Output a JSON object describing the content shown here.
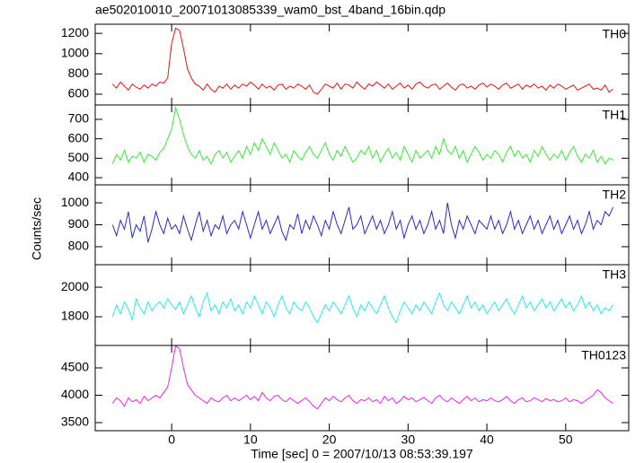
{
  "chart_data": {
    "type": "line",
    "title": "ae502010010_20071013085339_wam0_bst_4band_16bin.qdp",
    "xlabel": "Time [sec] 0 = 2007/10/13 08:53:39.197",
    "ylabel": "Counts/sec",
    "xlim": [
      -9.7,
      58
    ],
    "xticks": [
      0,
      10,
      20,
      30,
      40,
      50
    ],
    "x": [
      -7.5,
      -7,
      -6.5,
      -6,
      -5.5,
      -5,
      -4.5,
      -4,
      -3.5,
      -3,
      -2.5,
      -2,
      -1.5,
      -1,
      -0.5,
      0,
      0.5,
      1,
      1.5,
      2,
      2.5,
      3,
      3.5,
      4,
      4.5,
      5,
      5.5,
      6,
      6.5,
      7,
      7.5,
      8,
      8.5,
      9,
      9.5,
      10,
      10.5,
      11,
      11.5,
      12,
      12.5,
      13,
      13.5,
      14,
      14.5,
      15,
      15.5,
      16,
      16.5,
      17,
      17.5,
      18,
      18.5,
      19,
      19.5,
      20,
      20.5,
      21,
      21.5,
      22,
      22.5,
      23,
      23.5,
      24,
      24.5,
      25,
      25.5,
      26,
      26.5,
      27,
      27.5,
      28,
      28.5,
      29,
      29.5,
      30,
      30.5,
      31,
      31.5,
      32,
      32.5,
      33,
      33.5,
      34,
      34.5,
      35,
      35.5,
      36,
      36.5,
      37,
      37.5,
      38,
      38.5,
      39,
      39.5,
      40,
      40.5,
      41,
      41.5,
      42,
      42.5,
      43,
      43.5,
      44,
      44.5,
      45,
      45.5,
      46,
      46.5,
      47,
      47.5,
      48,
      48.5,
      49,
      49.5,
      50,
      50.5,
      51,
      51.5,
      52,
      52.5,
      53,
      53.5,
      54,
      54.5,
      55,
      55.5,
      56
    ],
    "series": [
      {
        "name": "TH0",
        "color": "#ee1111",
        "ylim": [
          494,
          1290
        ],
        "yticks": [
          600,
          800,
          1000,
          1200
        ],
        "values": [
          700,
          660,
          720,
          680,
          640,
          700,
          670,
          650,
          690,
          660,
          700,
          680,
          720,
          710,
          760,
          1100,
          1250,
          1230,
          1050,
          850,
          760,
          700,
          680,
          640,
          700,
          650,
          620,
          680,
          660,
          700,
          650,
          690,
          660,
          700,
          680,
          720,
          690,
          650,
          700,
          660,
          680,
          640,
          690,
          700,
          650,
          680,
          660,
          700,
          680,
          650,
          690,
          620,
          600,
          650,
          700,
          680,
          660,
          710,
          650,
          700,
          690,
          660,
          720,
          680,
          650,
          700,
          680,
          720,
          690,
          660,
          700,
          650,
          680,
          710,
          660,
          690,
          650,
          700,
          720,
          680,
          660,
          690,
          700,
          650,
          680,
          710,
          670,
          640,
          690,
          700,
          660,
          680,
          650,
          690,
          710,
          670,
          700,
          680,
          650,
          690,
          710,
          660,
          680,
          700,
          650,
          690,
          670,
          700,
          660,
          680,
          640,
          690,
          660,
          700,
          680,
          650,
          670,
          690,
          640,
          660,
          680,
          700,
          650,
          660,
          640,
          690,
          620,
          650
        ]
      },
      {
        "name": "TH1",
        "color": "#33ee33",
        "ylim": [
          363,
          774
        ],
        "yticks": [
          400,
          500,
          600,
          700
        ],
        "values": [
          470,
          520,
          490,
          540,
          480,
          510,
          500,
          530,
          480,
          520,
          510,
          490,
          530,
          550,
          600,
          650,
          760,
          700,
          620,
          560,
          520,
          500,
          540,
          490,
          510,
          470,
          520,
          540,
          500,
          530,
          480,
          510,
          540,
          500,
          560,
          520,
          580,
          540,
          600,
          560,
          520,
          580,
          540,
          500,
          520,
          480,
          540,
          510,
          490,
          530,
          560,
          520,
          500,
          540,
          580,
          520,
          490,
          540,
          510,
          560,
          520,
          480,
          500,
          540,
          520,
          560,
          500,
          540,
          480,
          520,
          550,
          500,
          530,
          490,
          560,
          520,
          480,
          540,
          500,
          520,
          540,
          500,
          560,
          520,
          600,
          540,
          520,
          560,
          500,
          540,
          480,
          520,
          560,
          530,
          490,
          520,
          500,
          540,
          520,
          480,
          530,
          560,
          510,
          540,
          500,
          520,
          480,
          540,
          510,
          560,
          520,
          490,
          520,
          500,
          540,
          490,
          530,
          560,
          510,
          480,
          520,
          500,
          540,
          480,
          510,
          470,
          500,
          490
        ]
      },
      {
        "name": "TH2",
        "color": "#2828d8",
        "ylim": [
          718,
          1082
        ],
        "yticks": [
          800,
          900,
          1000
        ],
        "values": [
          900,
          850,
          920,
          880,
          960,
          840,
          900,
          870,
          940,
          820,
          880,
          960,
          900,
          860,
          930,
          880,
          900,
          860,
          940,
          880,
          830,
          900,
          960,
          870,
          920,
          850,
          900,
          880,
          940,
          860,
          900,
          920,
          880,
          960,
          900,
          840,
          900,
          960,
          880,
          920,
          860,
          900,
          940,
          870,
          830,
          900,
          880,
          950,
          860,
          920,
          880,
          940,
          900,
          850,
          920,
          880,
          960,
          900,
          860,
          920,
          980,
          880,
          900,
          940,
          860,
          900,
          940,
          880,
          920,
          860,
          900,
          960,
          880,
          920,
          840,
          900,
          940,
          880,
          920,
          860,
          900,
          960,
          880,
          920,
          860,
          1000,
          900,
          840,
          920,
          880,
          940,
          900,
          860,
          920,
          900,
          880,
          940,
          880,
          920,
          860,
          900,
          960,
          880,
          920,
          860,
          900,
          940,
          880,
          920,
          860,
          900,
          940,
          880,
          920,
          860,
          900,
          940,
          880,
          920,
          860,
          900,
          960,
          880,
          920,
          900,
          960,
          940,
          980
        ]
      },
      {
        "name": "TH3",
        "color": "#22eeee",
        "ylim": [
          1606,
          2152
        ],
        "yticks": [
          1800,
          2000
        ],
        "values": [
          1800,
          1880,
          1820,
          1900,
          1850,
          1780,
          1920,
          1860,
          1820,
          1900,
          1840,
          1880,
          1900,
          1860,
          1920,
          1880,
          1850,
          1900,
          1820,
          1880,
          1940,
          1860,
          1800,
          1900,
          1960,
          1840,
          1880,
          1820,
          1900,
          1860,
          1920,
          1840,
          1880,
          1820,
          1900,
          1860,
          1940,
          1880,
          1820,
          1900,
          1860,
          1800,
          1880,
          1940,
          1860,
          1820,
          1900,
          1860,
          1840,
          1900,
          1860,
          1800,
          1760,
          1820,
          1880,
          1840,
          1900,
          1860,
          1820,
          1880,
          1940,
          1860,
          1800,
          1880,
          1840,
          1900,
          1860,
          1820,
          1880,
          1940,
          1860,
          1800,
          1760,
          1840,
          1900,
          1860,
          1820,
          1880,
          1840,
          1900,
          1860,
          1820,
          1900,
          1960,
          1880,
          1840,
          1900,
          1860,
          1820,
          1880,
          1940,
          1860,
          1900,
          1840,
          1880,
          1820,
          1860,
          1900,
          1840,
          1880,
          1920,
          1860,
          1820,
          1880,
          1940,
          1860,
          1900,
          1840,
          1880,
          1920,
          1860,
          1900,
          1840,
          1880,
          1920,
          1860,
          1900,
          1840,
          1880,
          1940,
          1860,
          1900,
          1840,
          1880,
          1820,
          1860,
          1840,
          1880
        ]
      },
      {
        "name": "TH0123",
        "color": "#ee22ee",
        "ylim": [
          3352,
          4910
        ],
        "yticks": [
          3500,
          4000,
          4500
        ],
        "values": [
          3850,
          3950,
          3900,
          3800,
          3950,
          3880,
          3920,
          3850,
          3980,
          3900,
          3950,
          4000,
          3950,
          4050,
          4150,
          4500,
          4900,
          4850,
          4500,
          4200,
          4100,
          4000,
          3950,
          3900,
          3850,
          3950,
          3900,
          3880,
          3950,
          4000,
          3900,
          3950,
          3900,
          3950,
          4000,
          3920,
          3980,
          3900,
          4050,
          3950,
          3900,
          3980,
          4000,
          3920,
          3880,
          3950,
          3900,
          3850,
          3900,
          3950,
          3880,
          3800,
          3750,
          3850,
          3950,
          3900,
          3980,
          3920,
          3880,
          3950,
          4000,
          3900,
          3850,
          3920,
          3900,
          3950,
          3880,
          3920,
          3850,
          3980,
          3900,
          3950,
          3850,
          3900,
          3980,
          3920,
          3950,
          3880,
          3920,
          3960,
          3900,
          3850,
          3950,
          4000,
          3920,
          3880,
          3950,
          3900,
          3850,
          3920,
          3980,
          3900,
          3950,
          3880,
          3920,
          3900,
          3950,
          3900,
          3880,
          3920,
          3980,
          3900,
          3850,
          3920,
          3950,
          3880,
          3900,
          3950,
          3920,
          3880,
          3940,
          3900,
          3920,
          3880,
          3900,
          3950,
          3880,
          3920,
          3900,
          3850,
          3900,
          3950,
          4000,
          4100,
          4050,
          3950,
          3900,
          3850
        ]
      }
    ]
  }
}
